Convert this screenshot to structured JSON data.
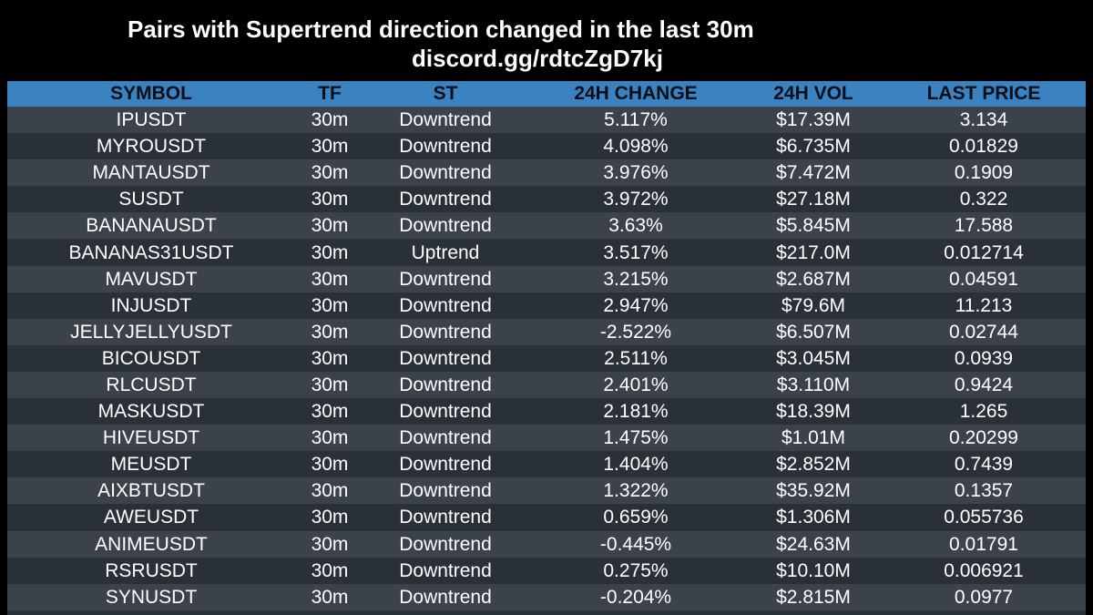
{
  "header": {
    "title": "Pairs with Supertrend direction changed in the last 30m",
    "subtitle": "discord.gg/rdtcZgD7kj"
  },
  "table": {
    "columns": [
      "SYMBOL",
      "TF",
      "ST",
      "24H CHANGE",
      "24H VOL",
      "LAST PRICE"
    ],
    "rows": [
      [
        "IPUSDT",
        "30m",
        "Downtrend",
        "5.117%",
        "$17.39M",
        "3.134"
      ],
      [
        "MYROUSDT",
        "30m",
        "Downtrend",
        "4.098%",
        "$6.735M",
        "0.01829"
      ],
      [
        "MANTAUSDT",
        "30m",
        "Downtrend",
        "3.976%",
        "$7.472M",
        "0.1909"
      ],
      [
        "SUSDT",
        "30m",
        "Downtrend",
        "3.972%",
        "$27.18M",
        "0.322"
      ],
      [
        "BANANAUSDT",
        "30m",
        "Downtrend",
        "3.63%",
        "$5.845M",
        "17.588"
      ],
      [
        "BANANAS31USDT",
        "30m",
        "Uptrend",
        "3.517%",
        "$217.0M",
        "0.012714"
      ],
      [
        "MAVUSDT",
        "30m",
        "Downtrend",
        "3.215%",
        "$2.687M",
        "0.04591"
      ],
      [
        "INJUSDT",
        "30m",
        "Downtrend",
        "2.947%",
        "$79.6M",
        "11.213"
      ],
      [
        "JELLYJELLYUSDT",
        "30m",
        "Downtrend",
        "-2.522%",
        "$6.507M",
        "0.02744"
      ],
      [
        "BICOUSDT",
        "30m",
        "Downtrend",
        "2.511%",
        "$3.045M",
        "0.0939"
      ],
      [
        "RLCUSDT",
        "30m",
        "Downtrend",
        "2.401%",
        "$3.110M",
        "0.9424"
      ],
      [
        "MASKUSDT",
        "30m",
        "Downtrend",
        "2.181%",
        "$18.39M",
        "1.265"
      ],
      [
        "HIVEUSDT",
        "30m",
        "Downtrend",
        "1.475%",
        "$1.01M",
        "0.20299"
      ],
      [
        "MEUSDT",
        "30m",
        "Downtrend",
        "1.404%",
        "$2.852M",
        "0.7439"
      ],
      [
        "AIXBTUSDT",
        "30m",
        "Downtrend",
        "1.322%",
        "$35.92M",
        "0.1357"
      ],
      [
        "AWEUSDT",
        "30m",
        "Downtrend",
        "0.659%",
        "$1.306M",
        "0.055736"
      ],
      [
        "ANIMEUSDT",
        "30m",
        "Downtrend",
        "-0.445%",
        "$24.63M",
        "0.01791"
      ],
      [
        "RSRUSDT",
        "30m",
        "Downtrend",
        "0.275%",
        "$10.10M",
        "0.006921"
      ],
      [
        "SYNUSDT",
        "30m",
        "Downtrend",
        "-0.204%",
        "$2.815M",
        "0.0977"
      ]
    ]
  },
  "colors": {
    "background": "#000000",
    "header_row": "#3a82c0",
    "row_odd": "#3b424b",
    "row_even": "#2a3038",
    "text": "#ffffff"
  }
}
